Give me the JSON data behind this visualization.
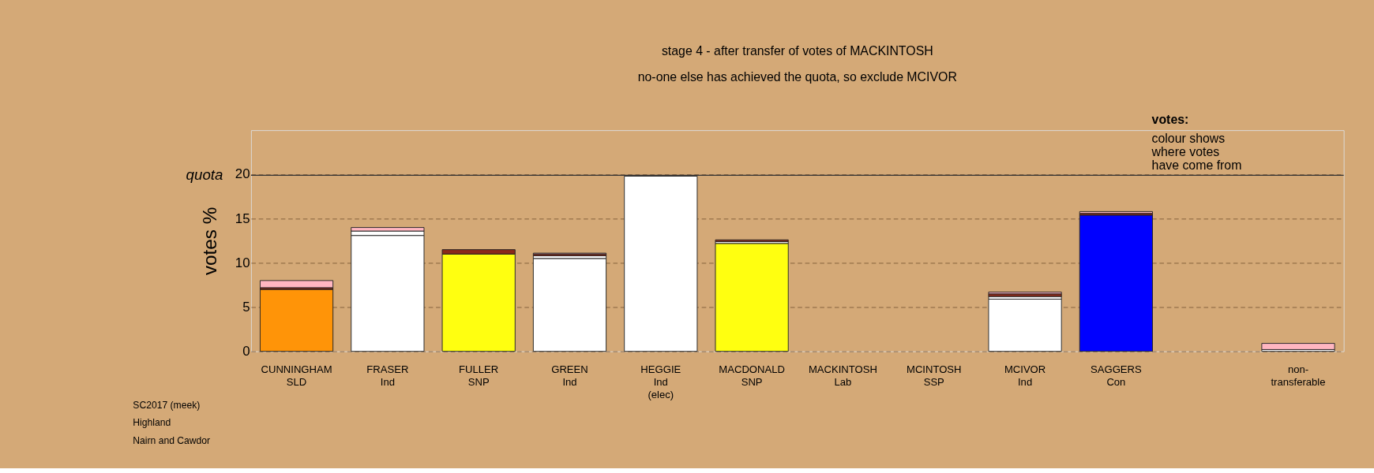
{
  "chart_data": {
    "type": "bar",
    "title": "stage 4 - after transfer of votes of MACKINTOSH",
    "subtitle": "no-one else has achieved the quota, so exclude MCIVOR",
    "ylabel": "votes %",
    "stacked": true,
    "categories": [
      "CUNNINGHAM\nSLD",
      "FRASER\nInd",
      "FULLER\nSNP",
      "GREEN\nInd",
      "HEGGIE\nInd\n(elec)",
      "MACDONALD\nSNP",
      "MACKINTOSH\nLab",
      "MCINTOSH\nSSP",
      "MCIVOR\nInd",
      "SAGGERS\nCon",
      null,
      "non-\ntransferable"
    ],
    "series": [
      {
        "colors": [
          "#ff9408",
          "#ffffff",
          "#ffff10",
          "#ffffff",
          "#ffffff",
          "#ffff10",
          null,
          null,
          "#ffffff",
          "#0000ff",
          null,
          "#ffffff"
        ],
        "values": [
          7.0,
          13.1,
          11.0,
          10.5,
          19.8,
          12.2,
          null,
          null,
          5.9,
          15.4,
          null,
          0.2
        ]
      },
      {
        "color": "#ffffff",
        "values": [
          null,
          0.5,
          null,
          0.3,
          null,
          0.2,
          null,
          null,
          0.3,
          null,
          null,
          null
        ]
      },
      {
        "color": "#8b2a1a",
        "values": [
          0.2,
          null,
          0.5,
          0.2,
          null,
          0.2,
          null,
          null,
          0.3,
          0.2,
          null,
          null
        ]
      },
      {
        "color": "#ffb6c1",
        "values": [
          0.8,
          0.4,
          null,
          0.1,
          null,
          null,
          null,
          null,
          0.2,
          0.2,
          null,
          0.7
        ]
      }
    ],
    "ylim": [
      0,
      25
    ],
    "yticks": [
      0,
      5,
      10,
      15,
      20
    ],
    "grid": "y",
    "ref_lines": [
      {
        "axis": "y",
        "value": 19.9,
        "label": "quota",
        "line_style": "solid"
      }
    ],
    "annotations": [
      "votes:",
      "colour shows where votes have come from",
      "SC2017 (meek)",
      "Highland",
      "Nairn and Cawdor"
    ]
  }
}
